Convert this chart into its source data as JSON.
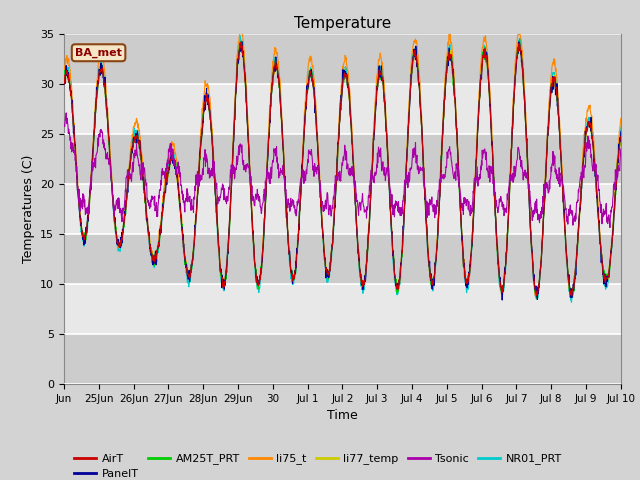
{
  "title": "Temperature",
  "ylabel": "Temperatures (C)",
  "xlabel": "Time",
  "ylim": [
    0,
    35
  ],
  "yticks": [
    0,
    5,
    10,
    15,
    20,
    25,
    30,
    35
  ],
  "fig_bg": "#d3d3d3",
  "plot_bg": "#e8e8e8",
  "legend_label": "BA_met",
  "series": [
    {
      "name": "AirT",
      "color": "#cc0000"
    },
    {
      "name": "PanelT",
      "color": "#000099"
    },
    {
      "name": "AM25T_PRT",
      "color": "#00cc00"
    },
    {
      "name": "li75_t",
      "color": "#ff8800"
    },
    {
      "name": "li77_temp",
      "color": "#cccc00"
    },
    {
      "name": "Tsonic",
      "color": "#aa00aa"
    },
    {
      "name": "NR01_PRT",
      "color": "#00cccc"
    }
  ],
  "tick_labels": [
    "Jun",
    "25Jun",
    "26Jun",
    "27Jun",
    "28Jun",
    "29Jun",
    "30",
    "Jul 1",
    "Jul 2",
    "Jul 3",
    "Jul 4",
    "Jul 5",
    "Jul 6",
    "Jul 7",
    "Jul 8",
    "Jul 9",
    "Jul 10"
  ],
  "tick_positions": [
    0,
    1,
    2,
    3,
    4,
    5,
    6,
    7,
    8,
    9,
    10,
    11,
    12,
    13,
    14,
    15,
    16
  ]
}
